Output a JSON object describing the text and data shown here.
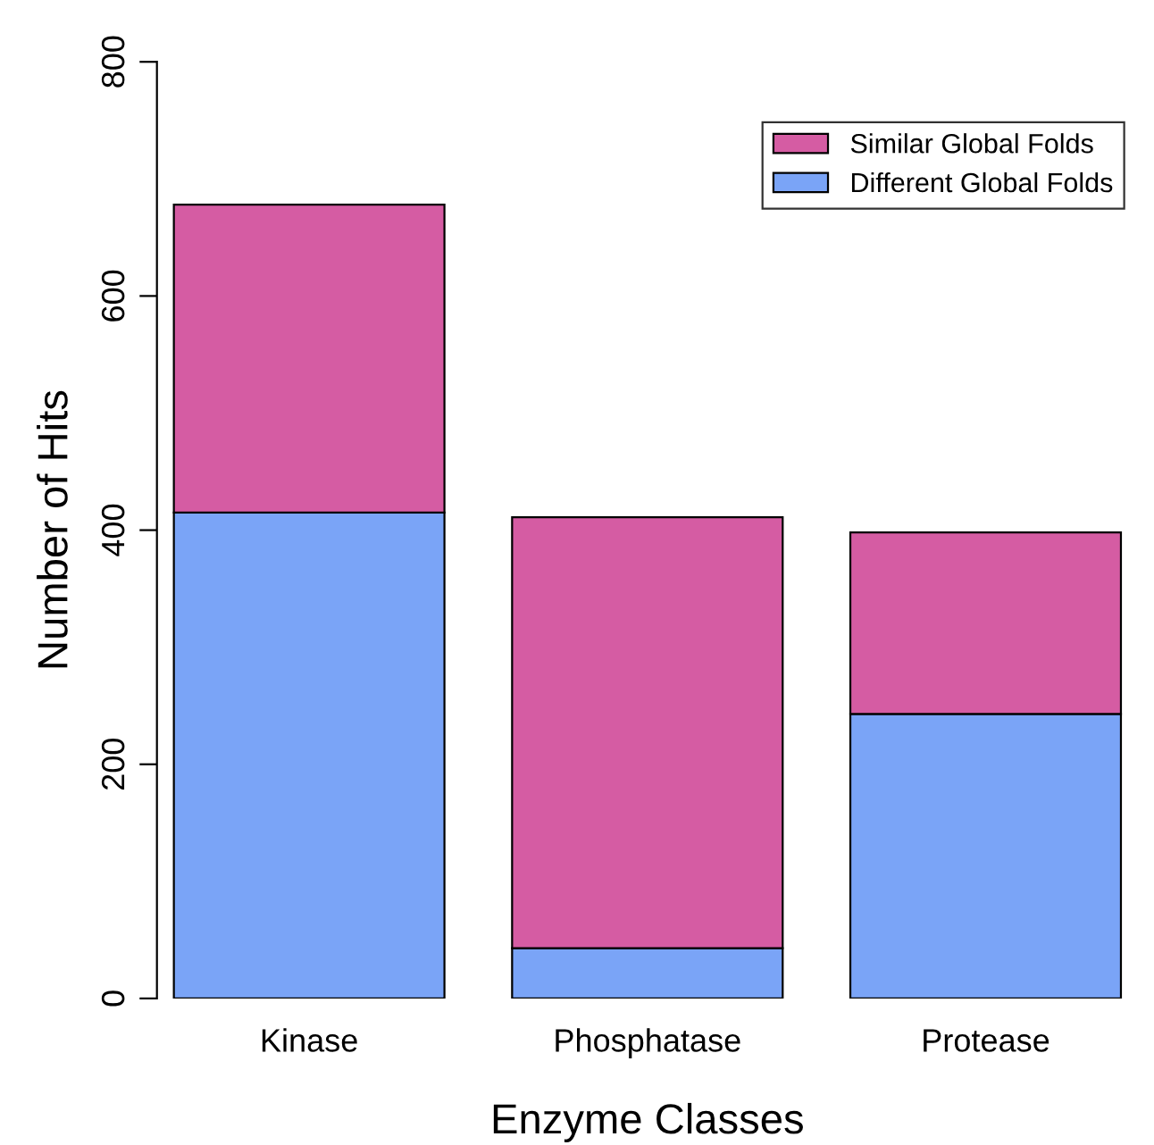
{
  "chart_data": {
    "type": "bar",
    "stacked": true,
    "xlabel": "Enzyme Classes",
    "ylabel": "Number of Hits",
    "categories": [
      "Kinase",
      "Phosphatase",
      "Protease"
    ],
    "series": [
      {
        "name": "Different Global Folds",
        "color": "#7aa4f7",
        "values": [
          415,
          43,
          243
        ]
      },
      {
        "name": "Similar Global Folds",
        "color": "#d55ca3",
        "values": [
          263,
          368,
          155
        ]
      }
    ],
    "ylim": [
      0,
      800
    ],
    "yticks": [
      0,
      200,
      400,
      600,
      800
    ],
    "grid": false,
    "legend": "top right"
  }
}
